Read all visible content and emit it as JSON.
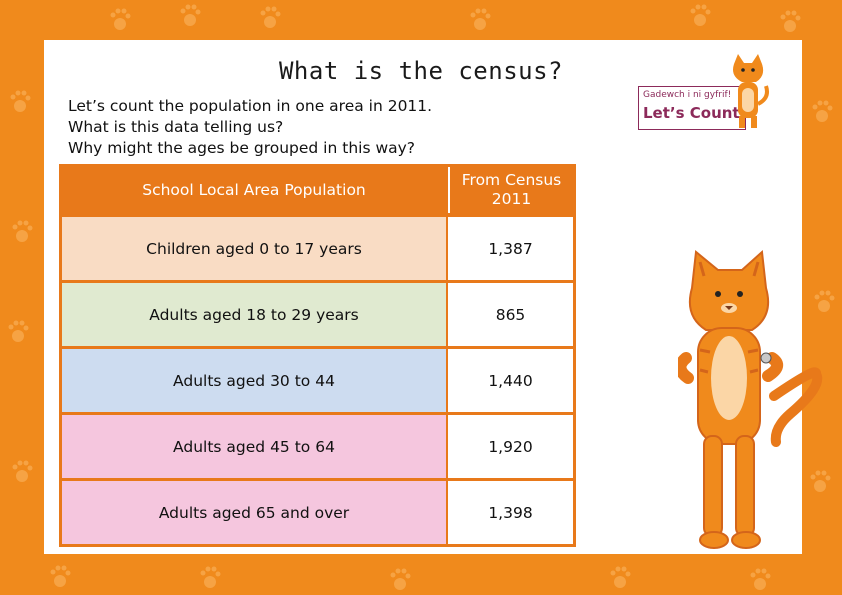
{
  "title": "What is the census?",
  "intro_lines": [
    "Let’s count the population in one area in 2011.",
    "What is this data telling us?",
    "Why might the ages be grouped in this way?"
  ],
  "table": {
    "header": {
      "left": "School Local Area Population",
      "right_line1": "From Census",
      "right_line2": "2011"
    },
    "rows": [
      {
        "label": "Children aged 0 to 17 years",
        "value": "1,387",
        "color": "#f9dcc4"
      },
      {
        "label": "Adults aged 18 to 29 years",
        "value": "865",
        "color": "#e0ead0"
      },
      {
        "label": "Adults aged 30 to 44",
        "value": "1,440",
        "color": "#cddcf0"
      },
      {
        "label": "Adults aged 45 to 64",
        "value": "1,920",
        "color": "#f5c6de"
      },
      {
        "label": "Adults aged 65 and over",
        "value": "1,398",
        "color": "#f5c6de"
      }
    ]
  },
  "logo": {
    "welsh": "Gadewch i ni gyfrif!",
    "english": "Let’s Count!"
  },
  "colors": {
    "background": "#f08a1c",
    "table_border": "#e8791a",
    "logo": "#8c2a5a"
  },
  "icons": [
    "paw-print-icon",
    "cat-mascot-icon"
  ]
}
